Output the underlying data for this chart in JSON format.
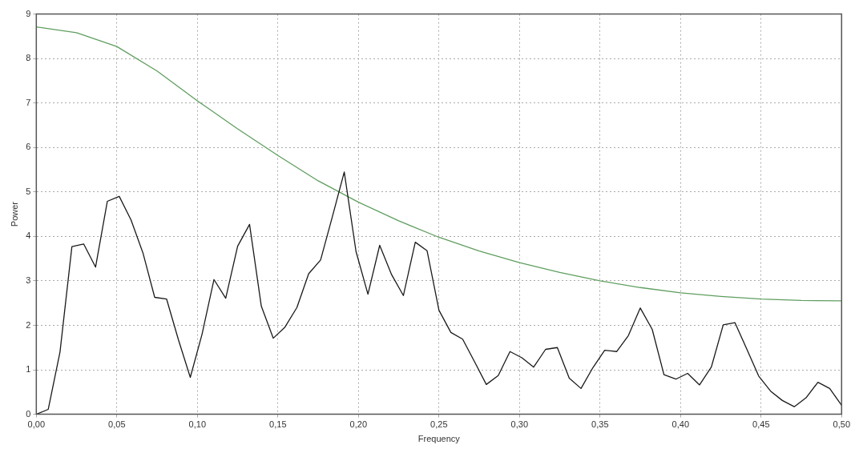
{
  "chart_data": {
    "type": "line",
    "xlabel": "Frequency",
    "ylabel": "Power",
    "xlim": [
      0,
      0.5
    ],
    "ylim": [
      0,
      9
    ],
    "xticks": [
      {
        "value": 0,
        "label": "0,00"
      },
      {
        "value": 0.05,
        "label": "0,05"
      },
      {
        "value": 0.1,
        "label": "0,10"
      },
      {
        "value": 0.15,
        "label": "0,15"
      },
      {
        "value": 0.2,
        "label": "0,20"
      },
      {
        "value": 0.25,
        "label": "0,25"
      },
      {
        "value": 0.3,
        "label": "0,30"
      },
      {
        "value": 0.35,
        "label": "0,35"
      },
      {
        "value": 0.4,
        "label": "0,40"
      },
      {
        "value": 0.45,
        "label": "0,45"
      },
      {
        "value": 0.5,
        "label": "0,50"
      }
    ],
    "yticks": [
      0,
      1,
      2,
      3,
      4,
      5,
      6,
      7,
      8,
      9
    ],
    "grid": true,
    "legend": false,
    "marker": "none",
    "line_style": "solid",
    "x": [
      0,
      0.0074,
      0.0147,
      0.0221,
      0.0294,
      0.0368,
      0.0441,
      0.0515,
      0.0588,
      0.0662,
      0.0735,
      0.0809,
      0.0882,
      0.0956,
      0.1029,
      0.1103,
      0.1176,
      0.125,
      0.1324,
      0.1397,
      0.1471,
      0.1544,
      0.1618,
      0.1691,
      0.1765,
      0.1838,
      0.1912,
      0.1985,
      0.2059,
      0.2132,
      0.2206,
      0.2279,
      0.2353,
      0.2426,
      0.25,
      0.2574,
      0.2647,
      0.2721,
      0.2794,
      0.2868,
      0.2941,
      0.3015,
      0.3088,
      0.3162,
      0.3235,
      0.3309,
      0.3382,
      0.3456,
      0.3529,
      0.3603,
      0.3676,
      0.375,
      0.3824,
      0.3897,
      0.3971,
      0.4044,
      0.4118,
      0.4191,
      0.4265,
      0.4338,
      0.4412,
      0.4485,
      0.4559,
      0.4632,
      0.4706,
      0.4779,
      0.4853,
      0.4926,
      0.5
    ],
    "series": [
      {
        "color": "#1a1a1a",
        "values": [
          0,
          0.11,
          1.4,
          3.77,
          3.83,
          3.31,
          4.79,
          4.9,
          4.37,
          3.63,
          2.63,
          2.59,
          1.68,
          0.83,
          1.8,
          3.03,
          2.61,
          3.78,
          4.27,
          2.43,
          1.71,
          1.96,
          2.4,
          3.16,
          3.47,
          4.44,
          5.45,
          3.66,
          2.7,
          3.8,
          3.14,
          2.67,
          3.87,
          3.68,
          2.34,
          1.84,
          1.69,
          1.18,
          0.67,
          0.87,
          1.41,
          1.27,
          1.06,
          1.46,
          1.5,
          0.81,
          0.58,
          1.05,
          1.44,
          1.41,
          1.77,
          2.39,
          1.91,
          0.89,
          0.79,
          0.92,
          0.66,
          1.06,
          2.01,
          2.06,
          1.46,
          0.86,
          0.52,
          0.31,
          0.17,
          0.37,
          0.72,
          0.58,
          0.2
        ]
      },
      {
        "color": "#5f9e5f",
        "x": [
          0,
          0.025,
          0.05,
          0.075,
          0.1,
          0.125,
          0.15,
          0.175,
          0.2,
          0.225,
          0.25,
          0.275,
          0.3,
          0.325,
          0.35,
          0.375,
          0.4,
          0.425,
          0.45,
          0.475,
          0.5
        ],
        "values": [
          8.71,
          8.58,
          8.27,
          7.72,
          7.05,
          6.42,
          5.82,
          5.25,
          4.77,
          4.35,
          3.98,
          3.67,
          3.41,
          3.19,
          3.0,
          2.85,
          2.73,
          2.65,
          2.59,
          2.56,
          2.55
        ]
      }
    ]
  }
}
